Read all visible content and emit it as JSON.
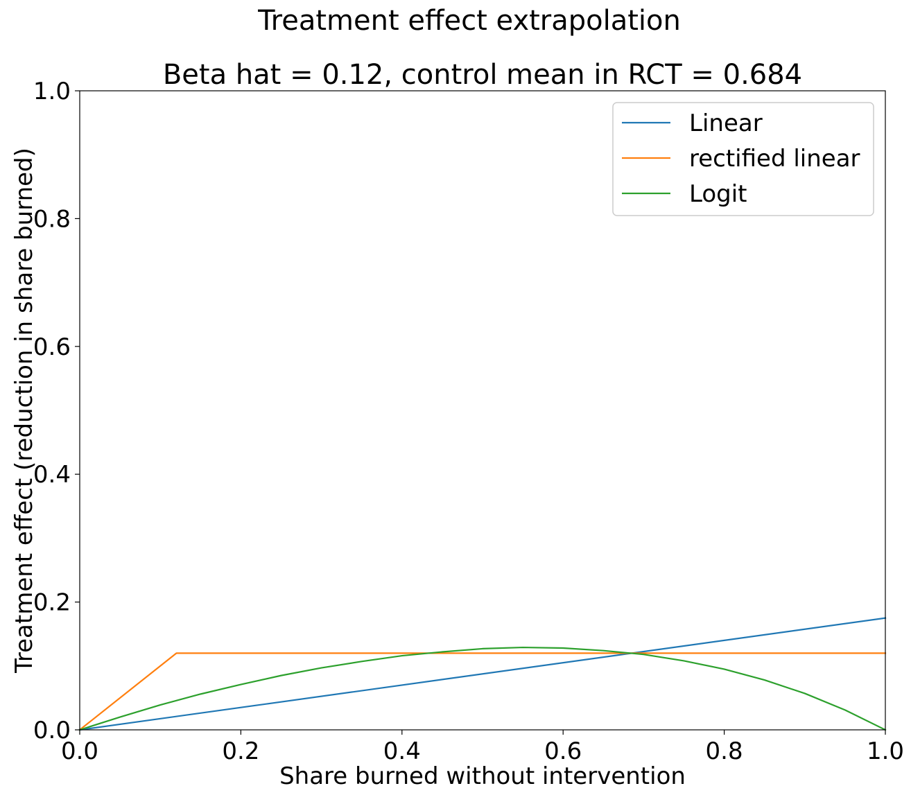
{
  "chart_data": {
    "type": "line",
    "suptitle": "Treatment effect extrapolation",
    "title": "Beta hat = 0.12, control mean in RCT = 0.684",
    "xlabel": "Share burned without intervention",
    "ylabel": "Treatment effect (reduction in share burned)",
    "xlim": [
      0.0,
      1.0
    ],
    "ylim": [
      0.0,
      1.0
    ],
    "xticks": [
      "0.0",
      "0.2",
      "0.4",
      "0.6",
      "0.8",
      "1.0"
    ],
    "yticks": [
      "0.0",
      "0.2",
      "0.4",
      "0.6",
      "0.8",
      "1.0"
    ],
    "grid": false,
    "legend_position": "top-right",
    "beta_hat": 0.12,
    "control_mean": 0.684,
    "series": [
      {
        "name": "Linear",
        "color": "#1f77b4",
        "x": [
          0.0,
          1.0
        ],
        "y": [
          0.0,
          0.175
        ]
      },
      {
        "name": "rectified linear",
        "color": "#ff7f0e",
        "x": [
          0.0,
          0.12,
          1.0
        ],
        "y": [
          0.0,
          0.12,
          0.12
        ]
      },
      {
        "name": "Logit",
        "color": "#2ca02c",
        "x": [
          0.0,
          0.05,
          0.1,
          0.15,
          0.2,
          0.25,
          0.3,
          0.35,
          0.4,
          0.45,
          0.5,
          0.55,
          0.6,
          0.65,
          0.7,
          0.75,
          0.8,
          0.85,
          0.9,
          0.95,
          1.0
        ],
        "y": [
          0.0,
          0.02,
          0.039,
          0.056,
          0.071,
          0.085,
          0.097,
          0.107,
          0.116,
          0.122,
          0.127,
          0.129,
          0.128,
          0.124,
          0.118,
          0.108,
          0.095,
          0.078,
          0.057,
          0.031,
          0.0
        ]
      }
    ]
  }
}
